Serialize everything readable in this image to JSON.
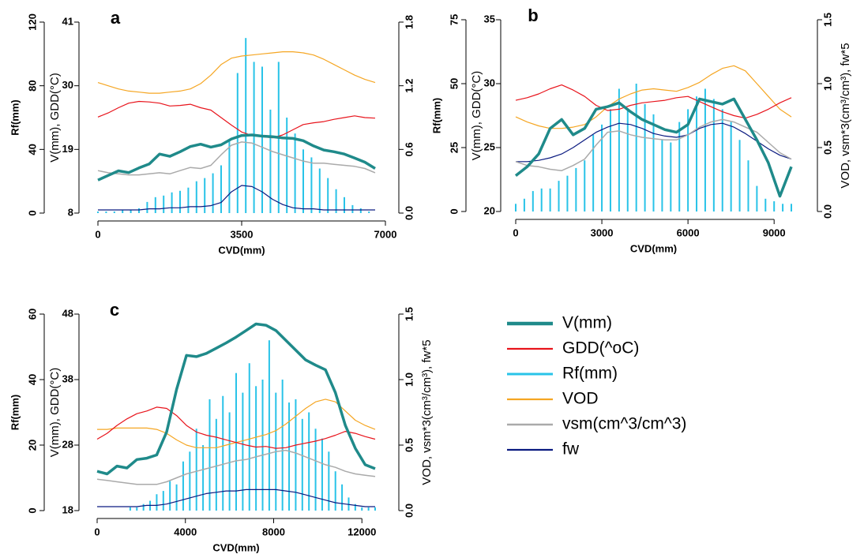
{
  "legend": [
    {
      "name": "V(mm)",
      "color": "#1f8a8a"
    },
    {
      "name": "GDD(^oC)",
      "color": "#e8141c"
    },
    {
      "name": "Rf(mm)",
      "color": "#29c3e8"
    },
    {
      "name": "VOD",
      "color": "#f5a623"
    },
    {
      "name": "vsm(cm^3/cm^3)",
      "color": "#aaaaaa"
    },
    {
      "name": "fw",
      "color": "#0a1a80"
    }
  ],
  "chart_data": [
    {
      "type": "line",
      "label": "a",
      "xlabel": "CVD(mm)",
      "ylabel": "Rf(mm)",
      "y1label": "V(mm), GDD(°C)",
      "xlim": [
        0,
        7000
      ],
      "xticks": [
        0,
        3500,
        7000
      ],
      "ylim": [
        0,
        120
      ],
      "yticks": [
        0,
        40,
        80,
        120
      ],
      "y1lim": [
        8,
        41
      ],
      "y1ticks": [
        8,
        19,
        30,
        41
      ],
      "y2lim": [
        0,
        1.8
      ],
      "y2ticks": [
        {
          "value": 0,
          "label": "0.0"
        },
        0.6,
        1.2,
        1.8
      ],
      "x": [
        0,
        250,
        500,
        750,
        1000,
        1250,
        1500,
        1750,
        2000,
        2250,
        2500,
        2750,
        3000,
        3250,
        3500,
        3750,
        4000,
        4250,
        4500,
        4750,
        5000,
        5250,
        5500,
        5750,
        6000,
        6250,
        6500,
        6750
      ],
      "series": [
        {
          "axis": "y1",
          "values": [
            13.7,
            14.5,
            15.3,
            15.0,
            15.8,
            16.5,
            18.2,
            17.8,
            18.6,
            19.5,
            19.9,
            19.4,
            19.8,
            20.8,
            21.4,
            21.5,
            21.3,
            21.2,
            21.0,
            20.9,
            20.5,
            19.6,
            18.9,
            18.6,
            18.2,
            17.5,
            16.8,
            15.7
          ]
        },
        {
          "axis": "y1",
          "values": [
            24.6,
            25.3,
            26.2,
            27.0,
            27.3,
            27.2,
            27.0,
            26.5,
            26.6,
            26.8,
            26.2,
            25.8,
            24.5,
            23.2,
            22.0,
            21.4,
            21.2,
            21.0,
            21.5,
            22.4,
            23.3,
            23.6,
            23.8,
            24.2,
            24.5,
            24.8,
            24.5,
            24.4
          ]
        },
        {
          "axis": "y",
          "bars": true,
          "x": [
            0,
            200,
            400,
            600,
            800,
            1000,
            1200,
            1400,
            1600,
            1800,
            2000,
            2200,
            2400,
            2600,
            2800,
            3000,
            3200,
            3400,
            3600,
            3800,
            4000,
            4200,
            4400,
            4600,
            4800,
            5000,
            5200,
            5400,
            5600,
            5800,
            6000,
            6200,
            6400,
            6600
          ],
          "values": [
            1,
            1,
            1,
            2,
            2,
            3,
            7,
            10,
            11,
            13,
            14,
            16,
            20,
            22,
            25,
            30,
            45,
            88,
            110,
            95,
            92,
            65,
            95,
            60,
            50,
            40,
            35,
            28,
            22,
            15,
            10,
            5,
            3,
            1
          ]
        },
        {
          "axis": "y2",
          "values": [
            1.23,
            1.2,
            1.17,
            1.15,
            1.14,
            1.13,
            1.13,
            1.14,
            1.15,
            1.17,
            1.22,
            1.3,
            1.4,
            1.46,
            1.48,
            1.49,
            1.5,
            1.51,
            1.52,
            1.52,
            1.51,
            1.49,
            1.45,
            1.4,
            1.35,
            1.3,
            1.26,
            1.23
          ]
        },
        {
          "axis": "y2",
          "values": [
            0.4,
            0.38,
            0.37,
            0.36,
            0.36,
            0.37,
            0.38,
            0.37,
            0.4,
            0.43,
            0.42,
            0.45,
            0.55,
            0.64,
            0.67,
            0.66,
            0.62,
            0.58,
            0.55,
            0.52,
            0.49,
            0.47,
            0.47,
            0.46,
            0.45,
            0.44,
            0.42,
            0.38
          ]
        },
        {
          "axis": "y2",
          "values": [
            0.03,
            0.03,
            0.03,
            0.03,
            0.03,
            0.04,
            0.04,
            0.05,
            0.05,
            0.06,
            0.06,
            0.07,
            0.1,
            0.2,
            0.26,
            0.25,
            0.2,
            0.13,
            0.08,
            0.05,
            0.04,
            0.04,
            0.03,
            0.03,
            0.03,
            0.03,
            0.03,
            0.03
          ]
        }
      ]
    },
    {
      "type": "line",
      "label": "b",
      "xlabel": "CVD(mm)",
      "ylabel": "Rf(mm)",
      "y1label": "V(mm), GDD(°C)",
      "y2label": "VOD, vsm*3(cm³/cm³), fw*5",
      "xlim": [
        0,
        9600
      ],
      "xticks": [
        0,
        3000,
        6000,
        9000
      ],
      "ylim": [
        0,
        75
      ],
      "yticks": [
        0,
        25,
        50,
        75
      ],
      "y1lim": [
        20,
        35
      ],
      "y1ticks": [
        20,
        25,
        30,
        35
      ],
      "y2lim": [
        0,
        1.5
      ],
      "y2ticks": [
        {
          "value": 0,
          "label": "0.0"
        },
        0.5,
        {
          "value": 1,
          "label": "1.0"
        },
        1.5
      ],
      "x": [
        0,
        400,
        800,
        1200,
        1600,
        2000,
        2400,
        2800,
        3200,
        3600,
        4000,
        4400,
        4800,
        5200,
        5600,
        6000,
        6400,
        6800,
        7200,
        7600,
        8000,
        8400,
        8800,
        9200,
        9600
      ],
      "series": [
        {
          "axis": "y1",
          "values": [
            22.8,
            23.5,
            24.5,
            26.5,
            27.2,
            26.0,
            26.5,
            28.0,
            28.2,
            28.5,
            27.8,
            27.2,
            26.8,
            26.4,
            26.2,
            26.8,
            28.8,
            28.6,
            28.4,
            28.8,
            27.2,
            25.6,
            23.8,
            21.2,
            23.5
          ]
        },
        {
          "axis": "y1",
          "values": [
            28.7,
            28.9,
            29.2,
            29.6,
            29.9,
            29.5,
            29.0,
            28.3,
            27.9,
            28.0,
            28.3,
            28.5,
            28.6,
            28.7,
            28.9,
            29.0,
            28.6,
            28.2,
            27.8,
            27.5,
            27.3,
            27.6,
            28.0,
            28.5,
            28.9
          ]
        },
        {
          "axis": "y",
          "bars": true,
          "x": [
            0,
            300,
            600,
            900,
            1200,
            1500,
            1800,
            2100,
            2400,
            2700,
            3000,
            3300,
            3600,
            3900,
            4200,
            4500,
            4800,
            5100,
            5400,
            5700,
            6000,
            6300,
            6600,
            6900,
            7200,
            7500,
            7800,
            8100,
            8400,
            8700,
            9000,
            9300,
            9600
          ],
          "values": [
            3,
            5,
            8,
            9,
            9,
            12,
            14,
            17,
            20,
            30,
            34,
            40,
            48,
            40,
            50,
            42,
            38,
            28,
            27,
            35,
            40,
            45,
            48,
            44,
            40,
            35,
            28,
            20,
            10,
            5,
            4,
            3,
            3
          ]
        },
        {
          "axis": "y2",
          "values": [
            0.74,
            0.7,
            0.67,
            0.65,
            0.65,
            0.66,
            0.68,
            0.74,
            0.82,
            0.88,
            0.92,
            0.95,
            0.96,
            0.95,
            0.94,
            0.97,
            1.01,
            1.07,
            1.12,
            1.14,
            1.1,
            1.0,
            0.9,
            0.8,
            0.74
          ]
        },
        {
          "axis": "y2",
          "values": [
            0.39,
            0.36,
            0.35,
            0.33,
            0.32,
            0.36,
            0.41,
            0.52,
            0.62,
            0.63,
            0.6,
            0.58,
            0.57,
            0.56,
            0.56,
            0.6,
            0.66,
            0.7,
            0.72,
            0.7,
            0.66,
            0.62,
            0.54,
            0.46,
            0.41
          ]
        },
        {
          "axis": "y2",
          "values": [
            0.39,
            0.39,
            0.4,
            0.42,
            0.45,
            0.5,
            0.56,
            0.62,
            0.66,
            0.69,
            0.68,
            0.65,
            0.61,
            0.59,
            0.58,
            0.6,
            0.65,
            0.68,
            0.69,
            0.66,
            0.61,
            0.55,
            0.49,
            0.44,
            0.41
          ]
        }
      ]
    },
    {
      "type": "line",
      "label": "c",
      "xlabel": "CVD(mm)",
      "ylabel": "Rf(mm)",
      "y1label": "V(mm), GDD(°C)",
      "y2label": "VOD, vsm*3(cm³/cm³), fw*5",
      "xlim": [
        0,
        12600
      ],
      "xticks": [
        0,
        4000,
        8000,
        12000
      ],
      "ylim": [
        0,
        60
      ],
      "yticks": [
        0,
        20,
        40,
        60
      ],
      "y1lim": [
        18,
        48
      ],
      "y1ticks": [
        18,
        28,
        38,
        48
      ],
      "y2lim": [
        0,
        1.5
      ],
      "y2ticks": [
        {
          "value": 0,
          "label": "0.0"
        },
        0.5,
        {
          "value": 1,
          "label": "1.0"
        },
        1.5
      ],
      "x": [
        0,
        450,
        900,
        1350,
        1800,
        2250,
        2700,
        3150,
        3600,
        4050,
        4500,
        4950,
        5400,
        5850,
        6300,
        6750,
        7200,
        7650,
        8100,
        8550,
        9000,
        9450,
        9900,
        10350,
        10800,
        11250,
        11700,
        12150,
        12600
      ],
      "series": [
        {
          "axis": "y1",
          "values": [
            24.0,
            23.6,
            24.8,
            24.5,
            25.8,
            26.0,
            26.5,
            30.0,
            36.5,
            41.7,
            41.5,
            42.0,
            42.8,
            43.6,
            44.5,
            45.5,
            46.5,
            46.3,
            45.5,
            44.0,
            42.5,
            41.0,
            40.2,
            39.5,
            36.0,
            31.0,
            27.5,
            25.0,
            24.4
          ]
        },
        {
          "axis": "y1",
          "values": [
            28.9,
            29.8,
            31.0,
            32.0,
            32.8,
            33.2,
            33.8,
            33.6,
            32.5,
            31.0,
            30.0,
            29.5,
            29.2,
            28.8,
            28.4,
            28.0,
            27.7,
            27.8,
            27.5,
            27.6,
            28.0,
            28.3,
            28.6,
            29.0,
            29.5,
            30.1,
            29.8,
            29.3,
            28.9
          ]
        },
        {
          "axis": "y",
          "bars": true,
          "x": [
            0,
            300,
            600,
            900,
            1200,
            1500,
            1800,
            2100,
            2400,
            2700,
            3000,
            3300,
            3600,
            3900,
            4200,
            4500,
            4800,
            5100,
            5400,
            5700,
            6000,
            6300,
            6600,
            6900,
            7200,
            7500,
            7800,
            8100,
            8400,
            8700,
            9000,
            9300,
            9600,
            9900,
            10200,
            10500,
            10800,
            11100,
            11400,
            11700,
            12000,
            12300,
            12600
          ],
          "values": [
            0,
            0,
            0,
            0,
            0,
            1,
            1,
            2,
            3,
            5,
            6,
            9,
            8,
            15,
            18,
            25,
            20,
            34,
            28,
            35,
            30,
            42,
            36,
            45,
            38,
            40,
            52,
            36,
            40,
            33,
            34,
            28,
            30,
            25,
            22,
            18,
            12,
            8,
            4,
            2,
            1,
            1,
            1
          ]
        },
        {
          "axis": "y2",
          "values": [
            0.62,
            0.62,
            0.63,
            0.63,
            0.63,
            0.63,
            0.62,
            0.59,
            0.54,
            0.5,
            0.48,
            0.48,
            0.48,
            0.5,
            0.52,
            0.54,
            0.56,
            0.58,
            0.61,
            0.66,
            0.72,
            0.78,
            0.83,
            0.85,
            0.83,
            0.76,
            0.69,
            0.65,
            0.62
          ]
        },
        {
          "axis": "y2",
          "values": [
            0.24,
            0.23,
            0.22,
            0.21,
            0.2,
            0.2,
            0.2,
            0.22,
            0.25,
            0.28,
            0.3,
            0.32,
            0.34,
            0.36,
            0.38,
            0.39,
            0.41,
            0.43,
            0.45,
            0.46,
            0.44,
            0.41,
            0.38,
            0.35,
            0.33,
            0.3,
            0.28,
            0.27,
            0.26
          ]
        },
        {
          "axis": "y2",
          "values": [
            0.03,
            0.03,
            0.03,
            0.03,
            0.03,
            0.04,
            0.04,
            0.05,
            0.07,
            0.09,
            0.11,
            0.13,
            0.14,
            0.15,
            0.15,
            0.16,
            0.16,
            0.16,
            0.16,
            0.15,
            0.14,
            0.12,
            0.1,
            0.08,
            0.06,
            0.05,
            0.04,
            0.03,
            0.03
          ]
        }
      ]
    }
  ]
}
